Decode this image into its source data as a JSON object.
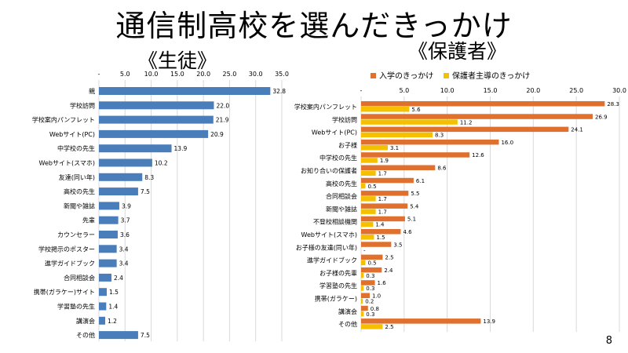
{
  "slide": {
    "title": "通信制高校を選んだきっかけ",
    "page_number": "8"
  },
  "chart_data": [
    {
      "type": "bar",
      "orientation": "horizontal",
      "title": "《生徒》",
      "categories": [
        "親",
        "学校訪問",
        "学校案内パンフレット",
        "Webサイト(PC)",
        "中学校の先生",
        "Webサイト(スマホ)",
        "友達(同い年)",
        "高校の先生",
        "新聞や雑誌",
        "先輩",
        "カウンセラー",
        "学校掲示のポスター",
        "進学ガイドブック",
        "合同相談会",
        "携帯(ガラケー)サイト",
        "学習塾の先生",
        "講演会",
        "その他"
      ],
      "values": [
        32.8,
        22.0,
        21.9,
        20.9,
        13.9,
        10.2,
        8.3,
        7.5,
        3.9,
        3.7,
        3.6,
        3.4,
        3.4,
        2.4,
        1.5,
        1.4,
        1.2,
        7.5
      ],
      "value_labels": [
        "32.8",
        "22.0",
        "21.9",
        "20.9",
        "13.9",
        "10.2",
        "8.3",
        "7.5",
        "3.9",
        "3.7",
        "3.6",
        "3.4",
        "3.4",
        "2.4",
        "1.5",
        "1.4",
        "1.2",
        "7.5"
      ],
      "x_ticks": [
        "-",
        "5.0",
        "10.0",
        "15.0",
        "20.0",
        "25.0",
        "30.0",
        "35.0"
      ],
      "xlim": [
        0,
        35
      ],
      "axis_position": "top",
      "grid": true,
      "color": "#4a7ebb"
    },
    {
      "type": "bar",
      "orientation": "horizontal",
      "title": "《保護者》",
      "categories": [
        "学校案内パンフレット",
        "学校訪問",
        "Webサイト(PC)",
        "お子様",
        "中学校の先生",
        "お知り合いの保護者",
        "高校の先生",
        "合同相談会",
        "新聞や雑誌",
        "不登校相談機関",
        "Webサイト(スマホ)",
        "お子様の友達(同い年)",
        "進学ガイドブック",
        "お子様の先輩",
        "学習塾の先生",
        "携帯(ガラケー)",
        "講演会",
        "その他"
      ],
      "series": [
        {
          "name": "入学のきっかけ",
          "color": "#e0702e",
          "values": [
            28.3,
            26.9,
            24.1,
            16.0,
            12.6,
            8.6,
            6.1,
            5.5,
            5.4,
            5.1,
            4.6,
            3.5,
            2.5,
            2.4,
            1.6,
            1.0,
            0.8,
            13.9
          ],
          "value_labels": [
            "28.3",
            "26.9",
            "24.1",
            "16.0",
            "12.6",
            "8.6",
            "6.1",
            "5.5",
            "5.4",
            "5.1",
            "4.6",
            "3.5",
            "2.5",
            "2.4",
            "1.6",
            "1.0",
            "0.8",
            "13.9"
          ]
        },
        {
          "name": "保護者主導のきっかけ",
          "color": "#f5c000",
          "values": [
            5.6,
            11.2,
            8.3,
            3.1,
            1.9,
            1.7,
            0.5,
            1.7,
            1.7,
            1.4,
            1.5,
            0,
            0.5,
            0.3,
            0.3,
            0.2,
            0.3,
            2.5
          ],
          "value_labels": [
            "5.6",
            "11.2",
            "8.3",
            "3.1",
            "1.9",
            "1.7",
            "0.5",
            "1.7",
            "1.7",
            "1.4",
            "1.5",
            "-",
            "0.5",
            "0.3",
            "0.3",
            "0.2",
            "0.3",
            "2.5"
          ]
        }
      ],
      "x_ticks": [
        "-",
        "5.0",
        "10.0",
        "15.0",
        "20.0",
        "25.0",
        "30.0"
      ],
      "xlim": [
        0,
        30
      ],
      "axis_position": "top",
      "grid": true,
      "legend_position": "top"
    }
  ]
}
